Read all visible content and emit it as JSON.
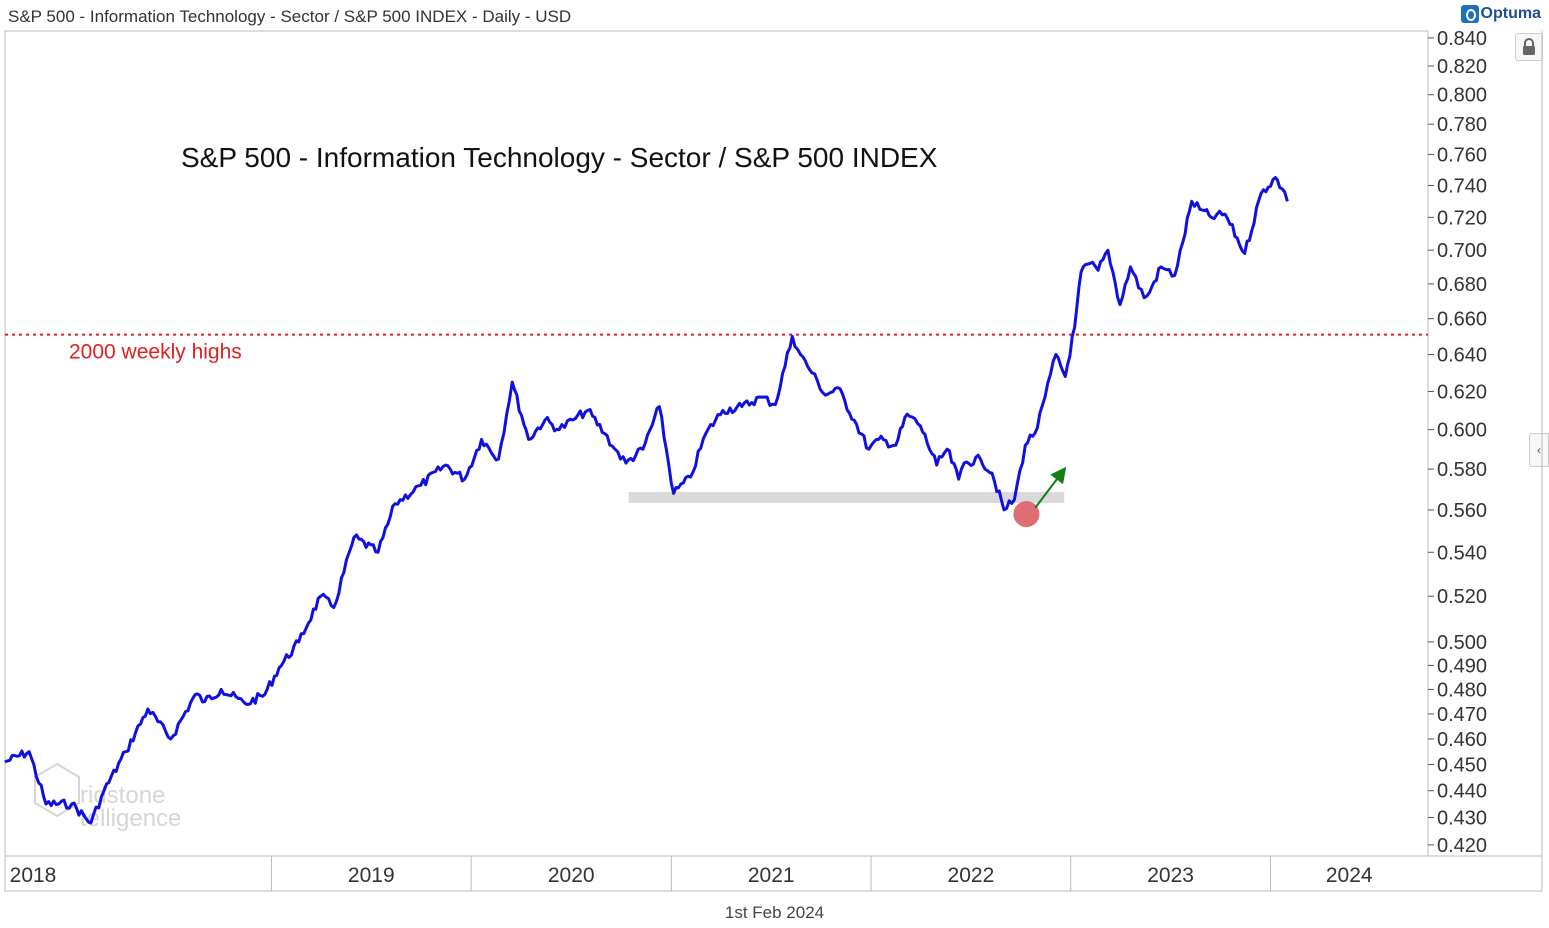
{
  "header": {
    "title": "S&P 500 - Information Technology - Sector / S&P 500 INDEX - Daily - USD",
    "brand": "Optuma"
  },
  "footer": {
    "date": "1st Feb 2024"
  },
  "icons": {
    "lock": "lock-icon",
    "side_handle": "chevron-left-icon",
    "brand": "optuma-logo-icon"
  },
  "watermark": {
    "line1": "ridstone",
    "line2": "telligence"
  },
  "chart_data": {
    "type": "line",
    "title": "S&P 500 - Information Technology - Sector / S&P 500 INDEX",
    "xlabel": "",
    "ylabel": "",
    "y_scale": "log",
    "ylim": [
      0.416,
      0.845
    ],
    "xlim": [
      "2017-09-01",
      "2024-10-15"
    ],
    "x_ticks": [
      "2018",
      "2019",
      "2020",
      "2021",
      "2022",
      "2023",
      "2024"
    ],
    "y_ticks": [
      "0.420",
      "0.430",
      "0.440",
      "0.450",
      "0.460",
      "0.470",
      "0.480",
      "0.490",
      "0.500",
      "0.520",
      "0.540",
      "0.560",
      "0.580",
      "0.600",
      "0.620",
      "0.640",
      "0.660",
      "0.680",
      "0.700",
      "0.720",
      "0.740",
      "0.760",
      "0.780",
      "0.800",
      "0.820",
      "0.840"
    ],
    "grid": false,
    "colors": {
      "series": "#1010e0",
      "reference": "#e02020",
      "support": "#d9d9d9",
      "low_marker": "#d9545c",
      "arrow": "#108010"
    },
    "series": [
      {
        "x": [
          "2017-09-01",
          "2017-10-15",
          "2017-11-15",
          "2018-01-01",
          "2018-02-05",
          "2018-03-01",
          "2018-04-10",
          "2018-05-20",
          "2018-07-01",
          "2018-08-15",
          "2018-09-01",
          "2018-10-01",
          "2018-11-15",
          "2018-12-20",
          "2019-01-15",
          "2019-02-20",
          "2019-04-01",
          "2019-04-25",
          "2019-06-01",
          "2019-07-15",
          "2019-08-15",
          "2019-10-01",
          "2019-11-15",
          "2019-12-20",
          "2020-01-20",
          "2020-02-20",
          "2020-03-16",
          "2020-04-15",
          "2020-05-15",
          "2020-06-10",
          "2020-07-05",
          "2020-08-01",
          "2020-09-01",
          "2020-09-20",
          "2020-10-10",
          "2020-11-10",
          "2020-12-10",
          "2021-01-05",
          "2021-02-05",
          "2021-03-05",
          "2021-04-05",
          "2021-05-10",
          "2021-06-15",
          "2021-07-10",
          "2021-08-10",
          "2021-08-25",
          "2021-09-15",
          "2021-10-10",
          "2021-11-01",
          "2021-12-01",
          "2021-12-28",
          "2022-01-15",
          "2022-02-15",
          "2022-03-08",
          "2022-04-01",
          "2022-05-01",
          "2022-05-20",
          "2022-06-10",
          "2022-06-20",
          "2022-07-20",
          "2022-08-10",
          "2022-09-01",
          "2022-09-20",
          "2022-10-10",
          "2022-11-01",
          "2022-11-15",
          "2022-12-05",
          "2022-12-22",
          "2023-01-08",
          "2023-01-20",
          "2023-02-05",
          "2023-02-20",
          "2023-03-10",
          "2023-04-01",
          "2023-04-20",
          "2023-05-15",
          "2023-05-25",
          "2023-06-15",
          "2023-07-10",
          "2023-07-25",
          "2023-08-10",
          "2023-08-25",
          "2023-09-15",
          "2023-10-10",
          "2023-11-15",
          "2023-12-15",
          "2024-01-10",
          "2024-01-22",
          "2024-02-01"
        ],
        "values": [
          0.451,
          0.455,
          0.435,
          0.435,
          0.428,
          0.44,
          0.455,
          0.472,
          0.46,
          0.478,
          0.475,
          0.48,
          0.474,
          0.478,
          0.489,
          0.5,
          0.52,
          0.515,
          0.547,
          0.54,
          0.563,
          0.572,
          0.582,
          0.575,
          0.595,
          0.585,
          0.625,
          0.595,
          0.605,
          0.6,
          0.605,
          0.61,
          0.598,
          0.59,
          0.583,
          0.59,
          0.612,
          0.568,
          0.576,
          0.598,
          0.61,
          0.612,
          0.617,
          0.613,
          0.65,
          0.64,
          0.63,
          0.618,
          0.622,
          0.605,
          0.59,
          0.595,
          0.592,
          0.608,
          0.602,
          0.582,
          0.59,
          0.575,
          0.583,
          0.585,
          0.578,
          0.56,
          0.565,
          0.592,
          0.601,
          0.617,
          0.64,
          0.628,
          0.655,
          0.687,
          0.692,
          0.688,
          0.7,
          0.668,
          0.69,
          0.672,
          0.675,
          0.69,
          0.685,
          0.705,
          0.73,
          0.725,
          0.72,
          0.722,
          0.698,
          0.735,
          0.745,
          0.738,
          0.73
        ]
      }
    ],
    "annotations": [
      {
        "type": "hline",
        "y": 0.651,
        "style": "dotted",
        "label": "2000 weekly highs"
      },
      {
        "type": "band",
        "y": 0.566,
        "x_from": "2020-10-15",
        "x_to": "2022-12-20"
      },
      {
        "type": "marker",
        "x": "2022-10-12",
        "y": 0.558
      },
      {
        "type": "arrow",
        "from_x": "2022-10-28",
        "from_y": 0.561,
        "to_x": "2022-12-15",
        "to_y": 0.578
      }
    ]
  }
}
